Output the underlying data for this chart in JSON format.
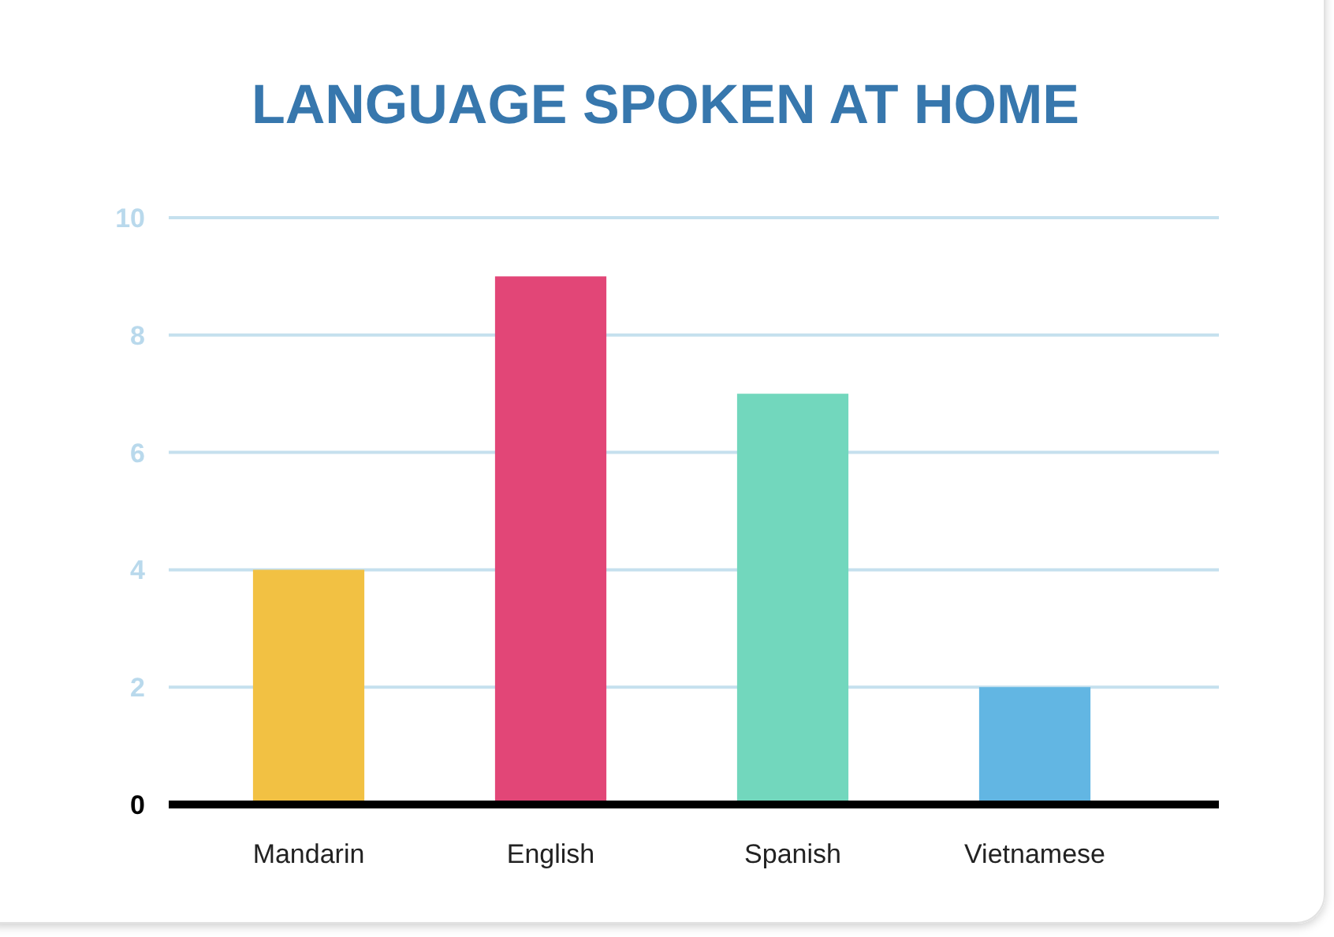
{
  "chart_data": {
    "type": "bar",
    "title": "LANGUAGE SPOKEN AT HOME",
    "categories": [
      "Mandarin",
      "English",
      "Spanish",
      "Vietnamese"
    ],
    "values": [
      4,
      9,
      7,
      2
    ],
    "colors": [
      "#f2c143",
      "#e24677",
      "#72d7bd",
      "#62b6e3"
    ],
    "ylim": [
      0,
      10
    ],
    "yticks": [
      0,
      2,
      4,
      6,
      8,
      10
    ],
    "grid": "y"
  }
}
